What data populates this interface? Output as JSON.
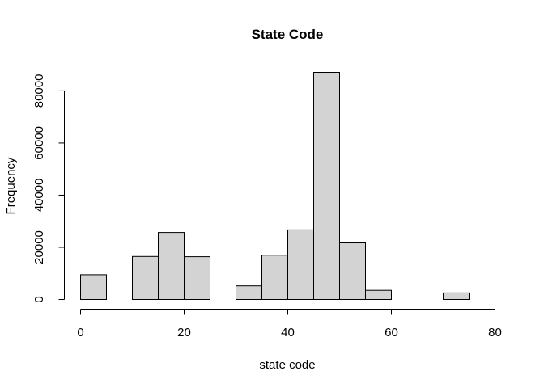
{
  "chart_data": {
    "type": "bar",
    "title": "State Code",
    "xlabel": "state code",
    "ylabel": "Frequency",
    "bin_edges": [
      0,
      5,
      10,
      15,
      20,
      25,
      30,
      35,
      40,
      45,
      50,
      55,
      60,
      65,
      70,
      75
    ],
    "values": [
      9500,
      0,
      16500,
      25700,
      16400,
      0,
      5200,
      17000,
      26700,
      87100,
      21700,
      3500,
      0,
      0,
      2500
    ],
    "xlim": [
      0,
      80
    ],
    "ylim": [
      0,
      87100
    ],
    "x_ticks": [
      0,
      20,
      40,
      60,
      80
    ],
    "y_ticks": [
      0,
      20000,
      40000,
      60000,
      80000
    ],
    "bar_color": "#d3d3d3",
    "grid": false,
    "legend": "none"
  }
}
